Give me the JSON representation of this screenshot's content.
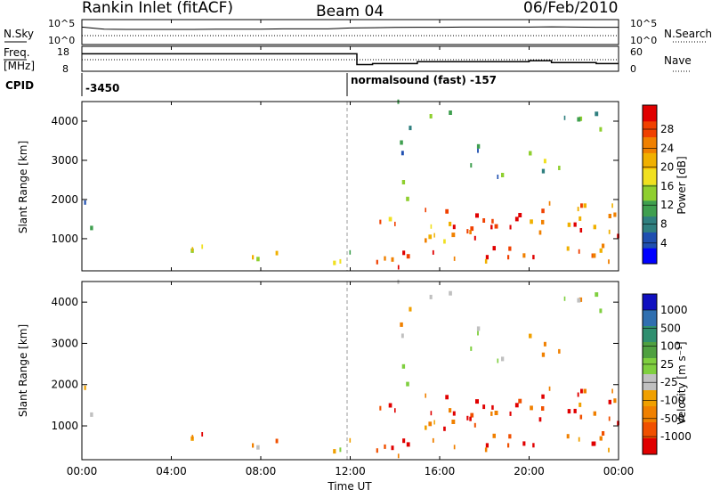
{
  "header": {
    "station": "Rankin Inlet (fitACF)",
    "beam": "Beam 04",
    "date": "06/Feb/2010"
  },
  "summary_panels": {
    "nsky_label": "N.Sky",
    "nsky_ticks": [
      "10^5",
      "10^0"
    ],
    "nsearch_label": "N.Search",
    "nsearch_ticks": [
      "10^5",
      "10^0"
    ],
    "freq_label_line1": "Freq.",
    "freq_label_line2": "[MHz]",
    "freq_ticks": [
      "18",
      "8"
    ],
    "nave_label": "Nave",
    "nave_ticks": [
      "60",
      "0"
    ],
    "cpid_label": "CPID",
    "cpid_first": "-3450",
    "cpid_second": "normalsound (fast) -157"
  },
  "axes": {
    "ylabel": "Slant Range [km]",
    "xlabel": "Time UT",
    "yticks": [
      "4000",
      "3000",
      "2000",
      "1000"
    ],
    "xticks": [
      "00:00",
      "04:00",
      "08:00",
      "12:00",
      "16:00",
      "20:00",
      "00:00"
    ]
  },
  "colors": {
    "power": [
      "#0000ff",
      "#1f4fb0",
      "#2f7f7f",
      "#3f9f4f",
      "#8fcf2f",
      "#f0e020",
      "#f0b000",
      "#f08000",
      "#f04000",
      "#e00000"
    ],
    "velocity": [
      "#1010c0",
      "#2f6fb0",
      "#2f8f6f",
      "#4fa040",
      "#7fcf3f",
      "#c0c0c0",
      "#f0a000",
      "#f08000",
      "#f05000",
      "#e00000"
    ]
  },
  "power_colorbar": {
    "label": "Power [dB]",
    "ticks": [
      "28",
      "24",
      "20",
      "16",
      "12",
      "8",
      "4"
    ]
  },
  "velocity_colorbar": {
    "label": "Velocity [m s⁻¹]",
    "ticks": [
      "1000",
      "500",
      "100",
      "25",
      "-25",
      "-100",
      "-500",
      "-1000"
    ]
  },
  "chart_data": [
    {
      "type": "line",
      "title": "N.Sky / N.Search",
      "x_range_hours": [
        0,
        24
      ],
      "y_scale": "log",
      "x": [
        0,
        1,
        2,
        3,
        4,
        5,
        6,
        7,
        8,
        9,
        10,
        11,
        12,
        13,
        14,
        15,
        16,
        17,
        18,
        19,
        20,
        21,
        22,
        23,
        24
      ],
      "series": [
        {
          "name": "N.Sky",
          "values": [
            10000,
            3000,
            2500,
            2500,
            2500,
            2500,
            3000,
            3000,
            3000,
            3500,
            3500,
            3500,
            6000,
            7000,
            8000,
            9000,
            9000,
            10000,
            10000,
            10000,
            10000,
            12000,
            10000,
            9000,
            9000
          ]
        }
      ]
    },
    {
      "type": "line",
      "title": "Freq. [MHz] / Nave",
      "x_range_hours": [
        0,
        24
      ],
      "x": [
        0,
        0.4,
        12,
        12.3,
        13,
        14,
        15,
        18,
        20,
        21,
        23,
        24
      ],
      "series": [
        {
          "name": "Freq.",
          "values": [
            16,
            16,
            16,
            10.5,
            11,
            11,
            12,
            12,
            12.5,
            11.5,
            11,
            11
          ]
        },
        {
          "name": "Nave",
          "values": [
            30,
            30,
            30,
            30,
            30,
            30,
            30,
            30,
            30,
            30,
            30,
            30
          ]
        }
      ]
    },
    {
      "type": "heatmap",
      "title": "Power [dB]",
      "x_range_hours": [
        0,
        24
      ],
      "ylim": [
        180,
        4500
      ],
      "colorbar_ticks": [
        4,
        8,
        12,
        16,
        20,
        24,
        28
      ]
    },
    {
      "type": "heatmap",
      "title": "Velocity [m s-1]",
      "x_range_hours": [
        0,
        24
      ],
      "ylim": [
        180,
        4500
      ],
      "colorbar_ticks": [
        -1000,
        -500,
        -100,
        -25,
        25,
        100,
        500,
        1000
      ]
    }
  ]
}
